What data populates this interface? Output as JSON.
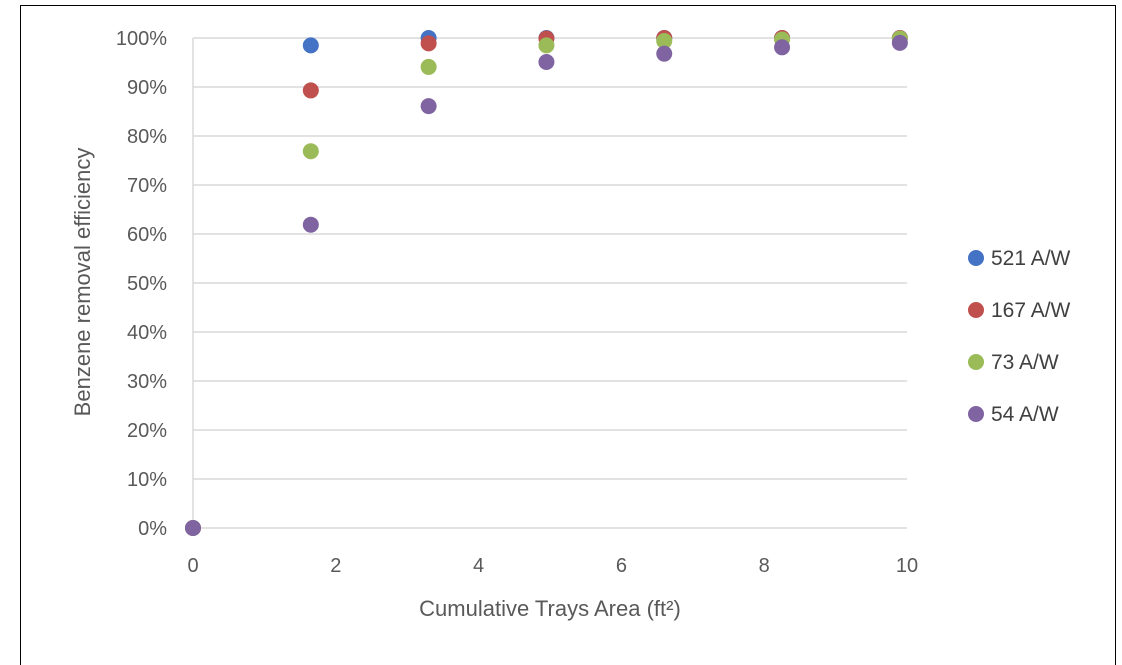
{
  "chart_data": {
    "type": "scatter",
    "title": "",
    "xlabel": "Cumulative Trays Area (ft²)",
    "ylabel": "Benzene removal efficiency",
    "xlim": [
      0,
      10
    ],
    "ylim": [
      0,
      100
    ],
    "x_ticks": [
      0,
      2,
      4,
      6,
      8,
      10
    ],
    "y_ticks": [
      0,
      10,
      20,
      30,
      40,
      50,
      60,
      70,
      80,
      90,
      100
    ],
    "y_tick_suffix": "%",
    "grid": "horizontal",
    "legend_position": "right",
    "x": [
      0,
      1.65,
      3.3,
      4.95,
      6.6,
      8.25,
      9.9
    ],
    "series": [
      {
        "name": "521 A/W",
        "color": "#4472C4",
        "values": [
          0,
          98.5,
          100,
          100,
          100,
          100,
          100
        ]
      },
      {
        "name": "167 A/W",
        "color": "#C0504D",
        "values": [
          0,
          89.3,
          98.9,
          99.9,
          100,
          100,
          100
        ]
      },
      {
        "name": "73 A/W",
        "color": "#9BBB59",
        "values": [
          0,
          76.9,
          94.1,
          98.5,
          99.4,
          99.7,
          99.9
        ]
      },
      {
        "name": "54 A/W",
        "color": "#8064A2",
        "values": [
          0,
          61.9,
          86.1,
          95.1,
          96.8,
          98.1,
          99.0
        ]
      }
    ]
  }
}
